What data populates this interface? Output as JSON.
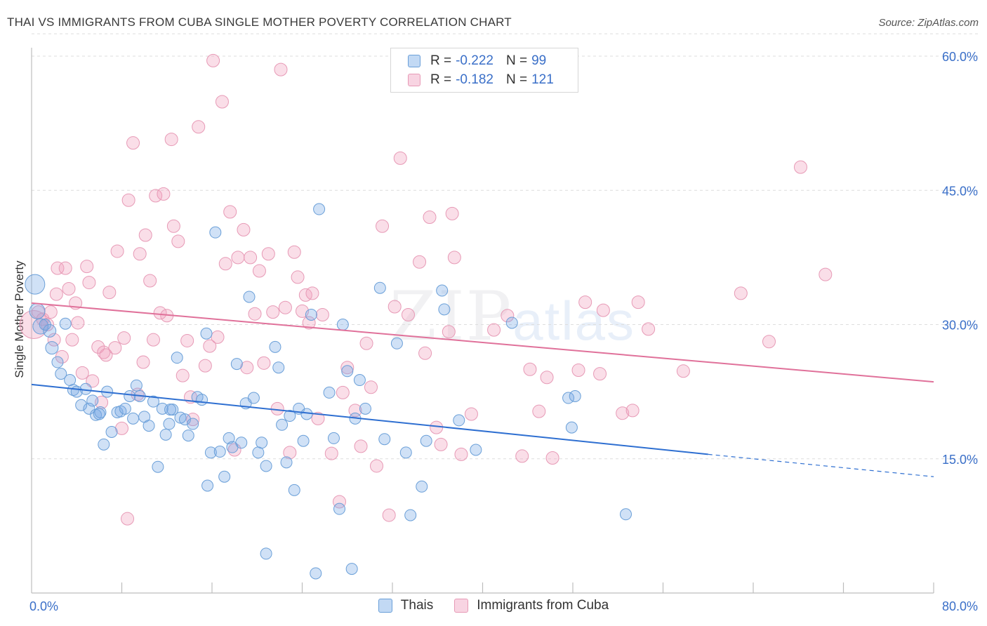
{
  "title": "THAI VS IMMIGRANTS FROM CUBA SINGLE MOTHER POVERTY CORRELATION CHART",
  "source": "Source: ZipAtlas.com",
  "watermark": {
    "zip": "ZIP",
    "atlas": "atlas"
  },
  "legend": {
    "thais": {
      "r_label": "R = ",
      "r_value": "-0.222",
      "n_label": "N = ",
      "n_value": "99"
    },
    "cuba": {
      "r_label": "R = ",
      "r_value": "-0.182",
      "n_label": "N = ",
      "n_value": "121"
    }
  },
  "colors": {
    "thais_fill": "rgba(120,170,230,0.35)",
    "thais_stroke": "#6a9fd8",
    "thais_line": "#2e6fd1",
    "cuba_fill": "rgba(240,160,190,0.35)",
    "cuba_stroke": "#e79ab6",
    "cuba_line": "#e0719a",
    "axis_text": "#3a6fc8",
    "grid": "#dedede"
  },
  "chart_data": {
    "type": "scatter",
    "title": "THAI VS IMMIGRANTS FROM CUBA SINGLE MOTHER POVERTY CORRELATION CHART",
    "xlabel": "",
    "ylabel": "Single Mother Poverty",
    "xlim": [
      0,
      80
    ],
    "ylim": [
      0,
      63
    ],
    "x_tick_labels": [
      "0.0%",
      "80.0%"
    ],
    "y_ticks": [
      15,
      30,
      45,
      60
    ],
    "y_tick_labels": [
      "15.0%",
      "30.0%",
      "45.0%",
      "60.0%"
    ],
    "x_minor_ticks": [
      8,
      16,
      24,
      32,
      40,
      48,
      56,
      64,
      72,
      80
    ],
    "legend": [
      "Thais",
      "Immigrants from Cuba"
    ],
    "series": [
      {
        "name": "Thais",
        "trend": {
          "x0": 0,
          "y0": 23.3,
          "x1": 60,
          "y1": 15.5,
          "dash_to_x": 80,
          "dash_to_y": 13.0
        },
        "points": [
          [
            0.3,
            34.5,
            14
          ],
          [
            0.5,
            31.5,
            11
          ],
          [
            0.8,
            29.8,
            11
          ],
          [
            1.2,
            30.0,
            8
          ],
          [
            1.6,
            29.3,
            9
          ],
          [
            1.8,
            27.4,
            9
          ],
          [
            2.3,
            25.8,
            8
          ],
          [
            2.6,
            24.5,
            8
          ],
          [
            3.0,
            30.1,
            8
          ],
          [
            3.4,
            23.8,
            8
          ],
          [
            3.7,
            22.7,
            8
          ],
          [
            4.0,
            22.5,
            8
          ],
          [
            4.4,
            21.0,
            8
          ],
          [
            4.8,
            22.8,
            8
          ],
          [
            5.1,
            20.6,
            8
          ],
          [
            5.4,
            21.5,
            8
          ],
          [
            5.7,
            19.9,
            8
          ],
          [
            6.1,
            20.2,
            8
          ],
          [
            6.4,
            16.6,
            8
          ],
          [
            6.7,
            22.5,
            8
          ],
          [
            7.1,
            18.0,
            8
          ],
          [
            7.6,
            20.2,
            8
          ],
          [
            7.9,
            20.3,
            8
          ],
          [
            8.3,
            20.6,
            8
          ],
          [
            8.7,
            22.0,
            8
          ],
          [
            9.0,
            19.5,
            8
          ],
          [
            9.3,
            23.2,
            8
          ],
          [
            9.6,
            22.0,
            8
          ],
          [
            10.0,
            19.7,
            8
          ],
          [
            10.4,
            18.7,
            8
          ],
          [
            10.8,
            21.4,
            8
          ],
          [
            11.2,
            14.1,
            8
          ],
          [
            11.6,
            20.6,
            8
          ],
          [
            11.9,
            17.7,
            8
          ],
          [
            12.2,
            18.9,
            8
          ],
          [
            12.5,
            20.5,
            8
          ],
          [
            12.9,
            26.3,
            8
          ],
          [
            13.2,
            19.6,
            8
          ],
          [
            13.6,
            19.4,
            8
          ],
          [
            13.9,
            17.6,
            8
          ],
          [
            14.3,
            18.9,
            8
          ],
          [
            14.7,
            21.9,
            8
          ],
          [
            15.1,
            21.6,
            8
          ],
          [
            15.5,
            29.0,
            8
          ],
          [
            15.6,
            12.0,
            8
          ],
          [
            15.9,
            15.7,
            8
          ],
          [
            16.3,
            40.3,
            8
          ],
          [
            16.7,
            15.8,
            8
          ],
          [
            17.1,
            13.0,
            8
          ],
          [
            17.5,
            17.3,
            8
          ],
          [
            17.8,
            16.3,
            8
          ],
          [
            18.2,
            25.6,
            8
          ],
          [
            18.6,
            16.8,
            8
          ],
          [
            19.0,
            21.2,
            8
          ],
          [
            19.3,
            33.1,
            8
          ],
          [
            19.7,
            21.8,
            8
          ],
          [
            20.1,
            15.7,
            8
          ],
          [
            20.4,
            16.8,
            8
          ],
          [
            20.8,
            14.2,
            8
          ],
          [
            20.8,
            4.4,
            8
          ],
          [
            21.6,
            27.5,
            8
          ],
          [
            21.9,
            25.2,
            8
          ],
          [
            22.2,
            18.8,
            8
          ],
          [
            22.6,
            14.6,
            8
          ],
          [
            22.9,
            19.8,
            8
          ],
          [
            23.3,
            11.5,
            8
          ],
          [
            23.7,
            20.6,
            8
          ],
          [
            24.1,
            17.0,
            8
          ],
          [
            24.4,
            20.0,
            8
          ],
          [
            24.8,
            31.1,
            8
          ],
          [
            25.2,
            2.2,
            8
          ],
          [
            25.5,
            42.9,
            8
          ],
          [
            26.4,
            22.4,
            8
          ],
          [
            26.8,
            17.3,
            8
          ],
          [
            27.3,
            9.4,
            8
          ],
          [
            27.6,
            30.0,
            8
          ],
          [
            28.0,
            24.8,
            8
          ],
          [
            28.4,
            2.7,
            8
          ],
          [
            28.7,
            19.5,
            8
          ],
          [
            29.1,
            23.8,
            8
          ],
          [
            29.6,
            20.6,
            8
          ],
          [
            30.9,
            34.1,
            8
          ],
          [
            31.3,
            17.2,
            8
          ],
          [
            32.4,
            27.9,
            8
          ],
          [
            33.2,
            15.7,
            8
          ],
          [
            33.6,
            8.7,
            8
          ],
          [
            34.6,
            11.9,
            8
          ],
          [
            35.0,
            17.0,
            8
          ],
          [
            36.4,
            33.8,
            8
          ],
          [
            36.6,
            31.7,
            8
          ],
          [
            37.9,
            19.3,
            8
          ],
          [
            39.4,
            16.0,
            8
          ],
          [
            42.6,
            30.2,
            8
          ],
          [
            47.6,
            21.8,
            8
          ],
          [
            47.9,
            18.5,
            8
          ],
          [
            48.2,
            22.0,
            8
          ],
          [
            52.7,
            8.8,
            8
          ],
          [
            6.0,
            20.0,
            8
          ],
          [
            12.3,
            20.5,
            8
          ]
        ]
      },
      {
        "name": "Immigrants from Cuba",
        "trend": {
          "x0": 0,
          "y0": 32.4,
          "x1": 80,
          "y1": 23.6
        },
        "points": [
          [
            0.2,
            30.0,
            20
          ],
          [
            0.6,
            31.4,
            9
          ],
          [
            1.0,
            30.6,
            9
          ],
          [
            1.4,
            30.0,
            9
          ],
          [
            1.7,
            31.4,
            9
          ],
          [
            2.0,
            28.3,
            9
          ],
          [
            2.2,
            33.4,
            9
          ],
          [
            2.3,
            36.3,
            9
          ],
          [
            2.7,
            26.4,
            9
          ],
          [
            3.0,
            36.3,
            9
          ],
          [
            3.3,
            34.0,
            9
          ],
          [
            3.6,
            28.3,
            9
          ],
          [
            3.9,
            32.4,
            9
          ],
          [
            4.1,
            30.2,
            9
          ],
          [
            4.5,
            24.6,
            9
          ],
          [
            4.9,
            36.5,
            9
          ],
          [
            5.1,
            34.7,
            9
          ],
          [
            5.4,
            23.7,
            9
          ],
          [
            5.9,
            27.5,
            9
          ],
          [
            6.2,
            21.3,
            9
          ],
          [
            6.4,
            26.9,
            9
          ],
          [
            6.6,
            26.6,
            9
          ],
          [
            6.9,
            33.6,
            9
          ],
          [
            7.4,
            27.4,
            9
          ],
          [
            7.6,
            38.2,
            9
          ],
          [
            8.0,
            18.4,
            9
          ],
          [
            8.2,
            28.5,
            9
          ],
          [
            8.5,
            8.3,
            9
          ],
          [
            8.6,
            43.9,
            9
          ],
          [
            9.0,
            50.3,
            9
          ],
          [
            9.4,
            22.2,
            9
          ],
          [
            9.6,
            37.9,
            9
          ],
          [
            9.9,
            25.8,
            9
          ],
          [
            10.1,
            40.0,
            9
          ],
          [
            10.5,
            34.9,
            9
          ],
          [
            10.8,
            28.3,
            9
          ],
          [
            11.0,
            44.4,
            9
          ],
          [
            11.4,
            31.3,
            9
          ],
          [
            11.7,
            44.6,
            9
          ],
          [
            12.0,
            31.0,
            9
          ],
          [
            12.4,
            50.7,
            9
          ],
          [
            12.6,
            41.0,
            9
          ],
          [
            13.0,
            39.3,
            9
          ],
          [
            13.4,
            24.3,
            9
          ],
          [
            13.8,
            28.2,
            9
          ],
          [
            14.1,
            21.9,
            9
          ],
          [
            14.3,
            19.4,
            9
          ],
          [
            14.8,
            52.1,
            9
          ],
          [
            15.4,
            25.4,
            9
          ],
          [
            15.8,
            27.6,
            9
          ],
          [
            16.1,
            59.5,
            9
          ],
          [
            16.5,
            28.6,
            9
          ],
          [
            16.9,
            54.9,
            9
          ],
          [
            17.2,
            36.8,
            9
          ],
          [
            17.6,
            42.6,
            9
          ],
          [
            18.0,
            16.0,
            9
          ],
          [
            18.3,
            37.5,
            9
          ],
          [
            18.8,
            40.6,
            9
          ],
          [
            19.1,
            25.2,
            9
          ],
          [
            19.4,
            37.5,
            9
          ],
          [
            19.8,
            31.2,
            9
          ],
          [
            20.2,
            36.0,
            9
          ],
          [
            20.6,
            25.7,
            9
          ],
          [
            21.0,
            37.9,
            9
          ],
          [
            21.4,
            31.4,
            9
          ],
          [
            21.8,
            20.6,
            9
          ],
          [
            22.1,
            58.5,
            9
          ],
          [
            22.5,
            31.9,
            9
          ],
          [
            22.9,
            15.7,
            9
          ],
          [
            23.3,
            38.1,
            9
          ],
          [
            23.6,
            35.3,
            9
          ],
          [
            24.0,
            31.5,
            9
          ],
          [
            24.3,
            33.3,
            9
          ],
          [
            24.6,
            30.2,
            9
          ],
          [
            24.9,
            33.5,
            9
          ],
          [
            25.4,
            19.5,
            9
          ],
          [
            25.8,
            31.1,
            9
          ],
          [
            26.6,
            15.6,
            9
          ],
          [
            27.3,
            10.2,
            9
          ],
          [
            27.6,
            22.4,
            9
          ],
          [
            28.0,
            25.2,
            9
          ],
          [
            28.7,
            20.4,
            9
          ],
          [
            29.2,
            16.4,
            9
          ],
          [
            29.7,
            27.9,
            9
          ],
          [
            30.1,
            23.0,
            9
          ],
          [
            30.6,
            14.2,
            9
          ],
          [
            31.1,
            41.0,
            9
          ],
          [
            31.7,
            8.7,
            9
          ],
          [
            32.2,
            32.0,
            9
          ],
          [
            32.7,
            48.6,
            9
          ],
          [
            33.4,
            31.1,
            9
          ],
          [
            34.4,
            37.0,
            9
          ],
          [
            34.9,
            26.8,
            9
          ],
          [
            35.3,
            42.0,
            9
          ],
          [
            35.9,
            18.5,
            9
          ],
          [
            36.3,
            16.6,
            9
          ],
          [
            37.0,
            29.2,
            9
          ],
          [
            37.3,
            42.4,
            9
          ],
          [
            37.5,
            37.5,
            9
          ],
          [
            38.1,
            15.5,
            9
          ],
          [
            39.0,
            20.0,
            9
          ],
          [
            41.0,
            29.4,
            9
          ],
          [
            42.2,
            31.0,
            9
          ],
          [
            43.5,
            15.3,
            9
          ],
          [
            44.2,
            25.0,
            9
          ],
          [
            45.0,
            20.3,
            9
          ],
          [
            45.7,
            24.1,
            9
          ],
          [
            46.2,
            15.1,
            9
          ],
          [
            48.5,
            24.9,
            9
          ],
          [
            49.1,
            32.5,
            9
          ],
          [
            50.4,
            24.5,
            9
          ],
          [
            50.7,
            31.6,
            9
          ],
          [
            52.4,
            20.1,
            9
          ],
          [
            53.3,
            20.4,
            9
          ],
          [
            53.8,
            32.5,
            9
          ],
          [
            54.7,
            29.5,
            9
          ],
          [
            57.8,
            24.8,
            9
          ],
          [
            62.9,
            33.5,
            9
          ],
          [
            65.4,
            28.1,
            9
          ],
          [
            68.2,
            47.6,
            9
          ],
          [
            70.4,
            35.6,
            9
          ]
        ]
      }
    ]
  },
  "bottom_legend": {
    "thais": "Thais",
    "cuba": "Immigrants from Cuba"
  }
}
